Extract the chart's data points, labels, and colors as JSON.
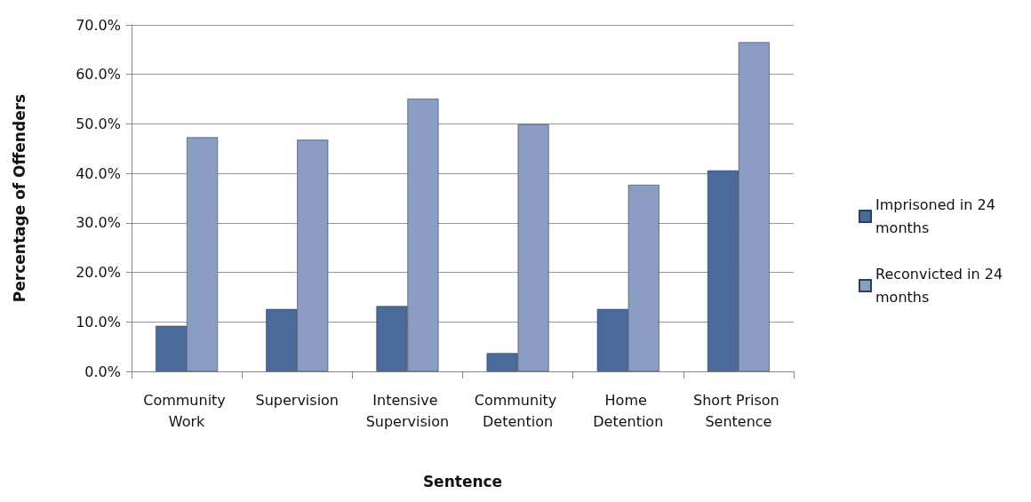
{
  "chart_data": {
    "type": "bar",
    "xlabel": "Sentence",
    "ylabel": "Percentage of Offenders",
    "categories": [
      "Community Work",
      "Supervision",
      "Intensive Supervision",
      "Community Detention",
      "Home Detention",
      "Short Prison Sentence"
    ],
    "series": [
      {
        "name": "Imprisoned in 24 months",
        "color": "#4a6b9a",
        "values": [
          9.2,
          12.6,
          13.2,
          3.7,
          12.6,
          40.6
        ]
      },
      {
        "name": "Reconvicted in 24 months",
        "color": "#8b9dc3",
        "values": [
          47.3,
          46.8,
          55.1,
          49.9,
          37.7,
          66.5
        ]
      }
    ],
    "ylim": [
      0,
      70
    ],
    "yticks": [
      {
        "value": 0,
        "label": "0.0%"
      },
      {
        "value": 10,
        "label": "10.0%"
      },
      {
        "value": 20,
        "label": "20.0%"
      },
      {
        "value": 30,
        "label": "30.0%"
      },
      {
        "value": 40,
        "label": "40.0%"
      },
      {
        "value": 50,
        "label": "50.0%"
      },
      {
        "value": 60,
        "label": "60.0%"
      },
      {
        "value": 70,
        "label": "70.0%"
      }
    ],
    "grid": "y",
    "legend": "right"
  }
}
